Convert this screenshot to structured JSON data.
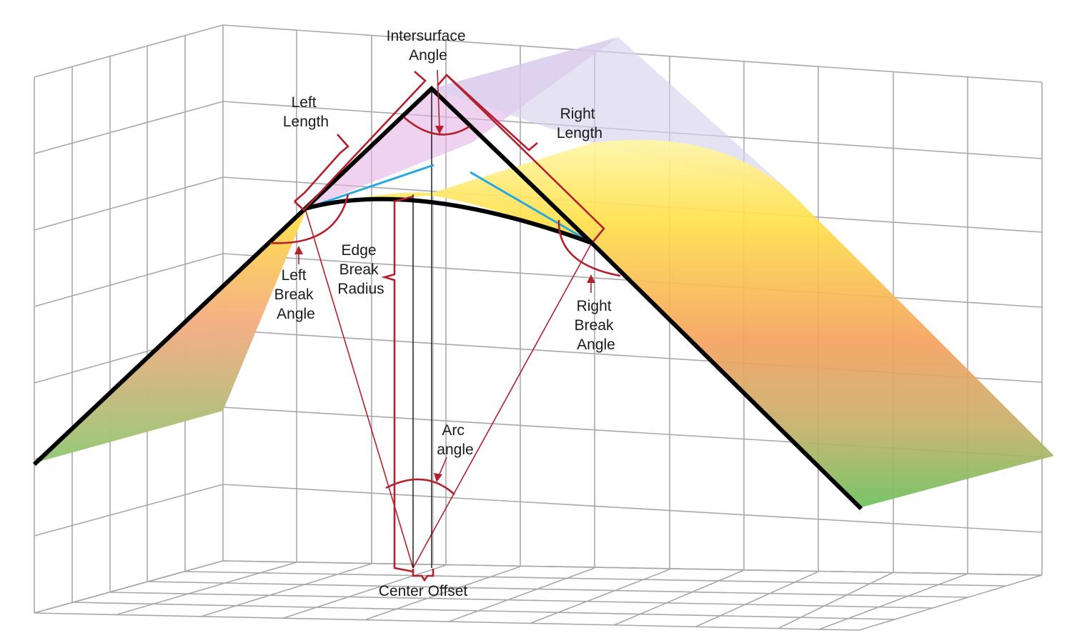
{
  "colors": {
    "grid": "#a8a8a8",
    "annotation": "#b3202e",
    "profile": "#000000",
    "tangent": "#29a8e0",
    "surface_top": "#ffe04a",
    "surface_mid": "#f4a15e",
    "surface_bottom": "#6cc05a",
    "left_plane": "#e3b4e6",
    "right_plane": "#d7d3ee"
  },
  "labels": {
    "intersurface_angle": [
      "Intersurface",
      "Angle"
    ],
    "left_length": [
      "Left",
      "Length"
    ],
    "right_length": [
      "Right",
      "Length"
    ],
    "left_break_angle": [
      "Left",
      "Break",
      "Angle"
    ],
    "edge_break_radius": [
      "Edge",
      "Break",
      "Radius"
    ],
    "right_break_angle": [
      "Right",
      "Break",
      "Angle"
    ],
    "arc_angle": [
      "Arc",
      "angle"
    ],
    "center_offset": "Center Offset"
  }
}
